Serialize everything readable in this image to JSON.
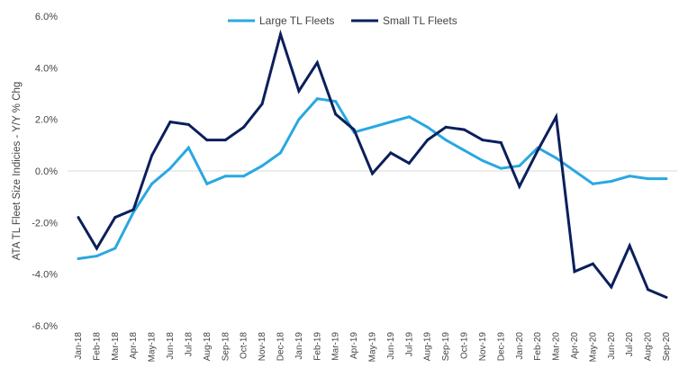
{
  "chart_data": {
    "type": "line",
    "ylabel": "ATA TL Fleet Size Indicies - Y/Y % Chg",
    "xlabel": "",
    "title": "",
    "ylim": [
      -6,
      6
    ],
    "y_ticks": [
      6,
      4,
      2,
      0,
      -2,
      -4,
      -6
    ],
    "y_tick_labels": [
      "6.0%",
      "4.0%",
      "2.0%",
      "0.0%",
      "-2.0%",
      "-4.0%",
      "-6.0%"
    ],
    "grid": false,
    "legend_position": "top-center",
    "categories": [
      "Jan-18",
      "Feb-18",
      "Mar-18",
      "Apr-18",
      "May-18",
      "Jun-18",
      "Jul-18",
      "Aug-18",
      "Sep-18",
      "Oct-18",
      "Nov-18",
      "Dec-18",
      "Jan-19",
      "Feb-19",
      "Mar-19",
      "Apr-19",
      "May-19",
      "Jun-19",
      "Jul-19",
      "Aug-19",
      "Sep-19",
      "Oct-19",
      "Nov-19",
      "Dec-19",
      "Jan-20",
      "Feb-20",
      "Mar-20",
      "Apr-20",
      "May-20",
      "Jun-20",
      "Jul-20",
      "Aug-20",
      "Sep-20"
    ],
    "series": [
      {
        "name": "Large TL Fleets",
        "color": "#29a8e0",
        "values": [
          -3.4,
          -3.3,
          -3.0,
          -1.6,
          -0.5,
          0.1,
          0.9,
          -0.5,
          -0.2,
          -0.2,
          0.2,
          0.7,
          2.0,
          2.8,
          2.7,
          1.5,
          1.7,
          1.9,
          2.1,
          1.7,
          1.2,
          0.8,
          0.4,
          0.1,
          0.2,
          0.9,
          0.5,
          0.0,
          -0.5,
          -0.4,
          -0.2,
          -0.3,
          -0.3
        ]
      },
      {
        "name": "Small TL Fleets",
        "color": "#0b1f5c",
        "values": [
          -1.8,
          -3.0,
          -1.8,
          -1.5,
          0.6,
          1.9,
          1.8,
          1.2,
          1.2,
          1.7,
          2.6,
          5.3,
          3.1,
          4.2,
          2.2,
          1.6,
          -0.1,
          0.7,
          0.3,
          1.2,
          1.7,
          1.6,
          1.2,
          1.1,
          -0.6,
          0.8,
          2.1,
          -3.9,
          -3.6,
          -4.5,
          -2.9,
          -4.6,
          -4.9
        ]
      }
    ]
  }
}
